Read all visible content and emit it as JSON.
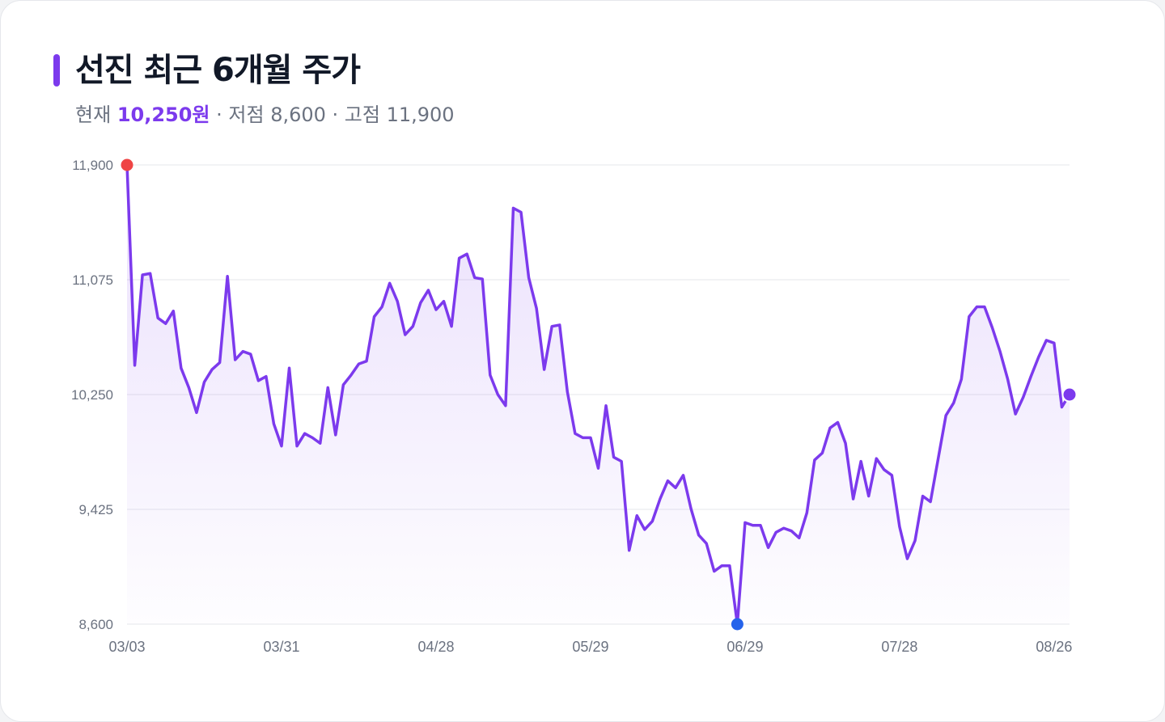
{
  "header": {
    "title": "선진 최근 6개월 주가",
    "current_label": "현재",
    "current_value": "10,250원",
    "low_text": " · 저점 8,600",
    "high_text": " · 고점 11,900"
  },
  "colors": {
    "accent": "#7c3aed",
    "high_marker": "#ef4444",
    "low_marker": "#2563eb",
    "grid": "#e5e7eb"
  },
  "chart_data": {
    "type": "area",
    "title": "선진 최근 6개월 주가",
    "xlabel": "",
    "ylabel": "",
    "ylim": [
      8600,
      11900
    ],
    "yticks": [
      {
        "value": 11900,
        "label": "11,900"
      },
      {
        "value": 11075,
        "label": "11,075"
      },
      {
        "value": 10250,
        "label": "10,250"
      },
      {
        "value": 9425,
        "label": "9,425"
      },
      {
        "value": 8600,
        "label": "8,600"
      }
    ],
    "xticks": [
      {
        "index": 0,
        "label": "03/03"
      },
      {
        "index": 20,
        "label": "03/31"
      },
      {
        "index": 40,
        "label": "04/28"
      },
      {
        "index": 60,
        "label": "05/29"
      },
      {
        "index": 80,
        "label": "06/29"
      },
      {
        "index": 100,
        "label": "07/28"
      },
      {
        "index": 120,
        "label": "08/26"
      }
    ],
    "grid": true,
    "values": [
      11900,
      10460,
      11110,
      11120,
      10800,
      10760,
      10850,
      10440,
      10300,
      10120,
      10340,
      10430,
      10480,
      11100,
      10500,
      10560,
      10540,
      10350,
      10380,
      10040,
      9880,
      10440,
      9880,
      9970,
      9940,
      9900,
      10300,
      9960,
      10320,
      10390,
      10470,
      10490,
      10810,
      10880,
      11050,
      10920,
      10680,
      10740,
      10910,
      11000,
      10860,
      10920,
      10740,
      11230,
      11260,
      11090,
      11080,
      10390,
      10250,
      10170,
      11590,
      11560,
      11090,
      10870,
      10430,
      10740,
      10750,
      10270,
      9970,
      9940,
      9940,
      9720,
      10170,
      9800,
      9770,
      9130,
      9380,
      9280,
      9340,
      9500,
      9630,
      9580,
      9670,
      9430,
      9240,
      9180,
      8980,
      9020,
      9020,
      8600,
      9330,
      9310,
      9310,
      9150,
      9260,
      9290,
      9270,
      9220,
      9400,
      9780,
      9830,
      10010,
      10050,
      9900,
      9500,
      9770,
      9520,
      9790,
      9710,
      9670,
      9300,
      9070,
      9200,
      9520,
      9480,
      9790,
      10100,
      10190,
      10360,
      10810,
      10880,
      10880,
      10730,
      10560,
      10360,
      10110,
      10230,
      10380,
      10520,
      10640,
      10620,
      10160,
      10250
    ]
  }
}
